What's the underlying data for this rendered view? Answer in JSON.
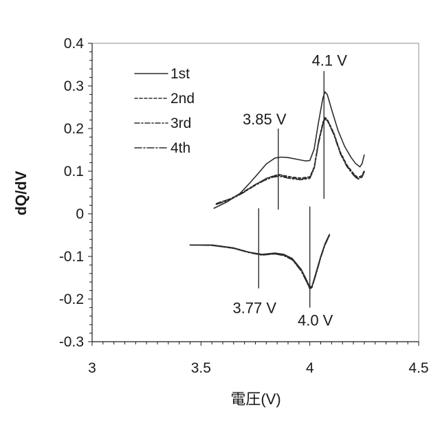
{
  "chart_data": {
    "type": "line",
    "xlabel": "電圧(V)",
    "ylabel": "dQ/dV",
    "xlim": [
      3,
      4.5
    ],
    "ylim": [
      -0.3,
      0.4
    ],
    "x_ticks": [
      "3",
      "3.5",
      "4",
      "4.5"
    ],
    "y_ticks": [
      "-0.3",
      "-0.2",
      "-0.1",
      "0",
      "0.1",
      "0.2",
      "0.3",
      "0.4"
    ],
    "grid": false,
    "legend_position": "top-left",
    "series": [
      {
        "name": "1st",
        "line_style": "solid",
        "branches": [
          [
            [
              3.56,
              0.013
            ],
            [
              3.62,
              0.028
            ],
            [
              3.68,
              0.048
            ],
            [
              3.72,
              0.07
            ],
            [
              3.76,
              0.093
            ],
            [
              3.8,
              0.117
            ],
            [
              3.84,
              0.131
            ],
            [
              3.87,
              0.133
            ],
            [
              3.9,
              0.132
            ],
            [
              3.94,
              0.128
            ],
            [
              3.98,
              0.124
            ],
            [
              4.0,
              0.125
            ],
            [
              4.02,
              0.152
            ],
            [
              4.04,
              0.215
            ],
            [
              4.06,
              0.272
            ],
            [
              4.07,
              0.286
            ],
            [
              4.08,
              0.28
            ],
            [
              4.1,
              0.245
            ],
            [
              4.13,
              0.195
            ],
            [
              4.16,
              0.158
            ],
            [
              4.19,
              0.132
            ],
            [
              4.21,
              0.118
            ],
            [
              4.23,
              0.11
            ],
            [
              4.24,
              0.118
            ],
            [
              4.25,
              0.138
            ]
          ],
          [
            [
              3.45,
              -0.073
            ],
            [
              3.55,
              -0.073
            ],
            [
              3.65,
              -0.08
            ],
            [
              3.72,
              -0.09
            ],
            [
              3.78,
              -0.095
            ],
            [
              3.84,
              -0.092
            ],
            [
              3.88,
              -0.095
            ],
            [
              3.92,
              -0.105
            ],
            [
              3.96,
              -0.13
            ],
            [
              3.98,
              -0.15
            ],
            [
              4.0,
              -0.172
            ],
            [
              4.01,
              -0.17
            ],
            [
              4.03,
              -0.135
            ],
            [
              4.05,
              -0.1
            ],
            [
              4.07,
              -0.07
            ],
            [
              4.09,
              -0.048
            ]
          ]
        ]
      },
      {
        "name": "2nd",
        "line_style": "dashed",
        "branches": [
          [
            [
              3.58,
              0.026
            ],
            [
              3.64,
              0.036
            ],
            [
              3.7,
              0.052
            ],
            [
              3.75,
              0.068
            ],
            [
              3.8,
              0.083
            ],
            [
              3.84,
              0.09
            ],
            [
              3.86,
              0.092
            ],
            [
              3.88,
              0.09
            ],
            [
              3.92,
              0.086
            ],
            [
              3.96,
              0.084
            ],
            [
              4.0,
              0.087
            ],
            [
              4.02,
              0.11
            ],
            [
              4.04,
              0.17
            ],
            [
              4.06,
              0.215
            ],
            [
              4.07,
              0.226
            ],
            [
              4.08,
              0.222
            ],
            [
              4.11,
              0.19
            ],
            [
              4.14,
              0.145
            ],
            [
              4.17,
              0.115
            ],
            [
              4.2,
              0.095
            ],
            [
              4.22,
              0.085
            ],
            [
              4.24,
              0.09
            ],
            [
              4.25,
              0.102
            ]
          ],
          [
            [
              3.45,
              -0.073
            ],
            [
              3.55,
              -0.073
            ],
            [
              3.65,
              -0.08
            ],
            [
              3.72,
              -0.09
            ],
            [
              3.78,
              -0.096
            ],
            [
              3.84,
              -0.093
            ],
            [
              3.88,
              -0.096
            ],
            [
              3.92,
              -0.106
            ],
            [
              3.96,
              -0.132
            ],
            [
              3.98,
              -0.152
            ],
            [
              4.0,
              -0.174
            ],
            [
              4.01,
              -0.171
            ],
            [
              4.03,
              -0.137
            ],
            [
              4.05,
              -0.101
            ],
            [
              4.07,
              -0.071
            ],
            [
              4.09,
              -0.049
            ]
          ]
        ]
      },
      {
        "name": "3rd",
        "line_style": "dash-dot",
        "branches": [
          [
            [
              3.57,
              0.024
            ],
            [
              3.63,
              0.034
            ],
            [
              3.69,
              0.05
            ],
            [
              3.74,
              0.066
            ],
            [
              3.79,
              0.08
            ],
            [
              3.83,
              0.088
            ],
            [
              3.86,
              0.09
            ],
            [
              3.88,
              0.088
            ],
            [
              3.92,
              0.084
            ],
            [
              3.96,
              0.082
            ],
            [
              4.0,
              0.085
            ],
            [
              4.02,
              0.108
            ],
            [
              4.04,
              0.167
            ],
            [
              4.06,
              0.212
            ],
            [
              4.07,
              0.224
            ],
            [
              4.08,
              0.221
            ],
            [
              4.11,
              0.188
            ],
            [
              4.14,
              0.143
            ],
            [
              4.17,
              0.113
            ],
            [
              4.2,
              0.093
            ],
            [
              4.22,
              0.083
            ],
            [
              4.24,
              0.088
            ],
            [
              4.25,
              0.1
            ]
          ],
          [
            [
              3.45,
              -0.073
            ],
            [
              3.55,
              -0.074
            ],
            [
              3.65,
              -0.081
            ],
            [
              3.72,
              -0.091
            ],
            [
              3.78,
              -0.096
            ],
            [
              3.84,
              -0.094
            ],
            [
              3.88,
              -0.097
            ],
            [
              3.92,
              -0.107
            ],
            [
              3.96,
              -0.133
            ],
            [
              3.98,
              -0.153
            ],
            [
              4.0,
              -0.175
            ],
            [
              4.01,
              -0.172
            ],
            [
              4.03,
              -0.138
            ],
            [
              4.05,
              -0.102
            ],
            [
              4.07,
              -0.072
            ],
            [
              4.09,
              -0.05
            ]
          ]
        ]
      },
      {
        "name": "4th",
        "line_style": "long-dash-dot",
        "branches": [
          [
            [
              3.57,
              0.022
            ],
            [
              3.63,
              0.032
            ],
            [
              3.69,
              0.048
            ],
            [
              3.74,
              0.064
            ],
            [
              3.79,
              0.078
            ],
            [
              3.83,
              0.086
            ],
            [
              3.86,
              0.088
            ],
            [
              3.88,
              0.086
            ],
            [
              3.92,
              0.082
            ],
            [
              3.96,
              0.08
            ],
            [
              4.0,
              0.083
            ],
            [
              4.02,
              0.106
            ],
            [
              4.04,
              0.165
            ],
            [
              4.06,
              0.21
            ],
            [
              4.07,
              0.222
            ],
            [
              4.08,
              0.219
            ],
            [
              4.11,
              0.186
            ],
            [
              4.14,
              0.141
            ],
            [
              4.17,
              0.111
            ],
            [
              4.2,
              0.091
            ],
            [
              4.22,
              0.081
            ],
            [
              4.24,
              0.086
            ],
            [
              4.25,
              0.098
            ]
          ],
          [
            [
              3.45,
              -0.073
            ],
            [
              3.55,
              -0.074
            ],
            [
              3.65,
              -0.081
            ],
            [
              3.72,
              -0.091
            ],
            [
              3.78,
              -0.097
            ],
            [
              3.84,
              -0.094
            ],
            [
              3.88,
              -0.098
            ],
            [
              3.92,
              -0.108
            ],
            [
              3.96,
              -0.134
            ],
            [
              3.98,
              -0.154
            ],
            [
              4.0,
              -0.176
            ],
            [
              4.01,
              -0.173
            ],
            [
              4.03,
              -0.139
            ],
            [
              4.05,
              -0.103
            ],
            [
              4.07,
              -0.073
            ],
            [
              4.09,
              -0.051
            ]
          ]
        ]
      }
    ],
    "annotations": [
      {
        "label": "4.1 V",
        "x": 4.065,
        "y_from": 0.035,
        "y_to": 0.335
      },
      {
        "label": "3.85 V",
        "x": 3.855,
        "y_from": 0.01,
        "y_to": 0.2
      },
      {
        "label": "3.77 V",
        "x": 3.765,
        "y_from": -0.175,
        "y_to": 0.013
      },
      {
        "label": "4.0 V",
        "x": 4.0,
        "y_from": -0.22,
        "y_to": 0.017
      }
    ]
  }
}
